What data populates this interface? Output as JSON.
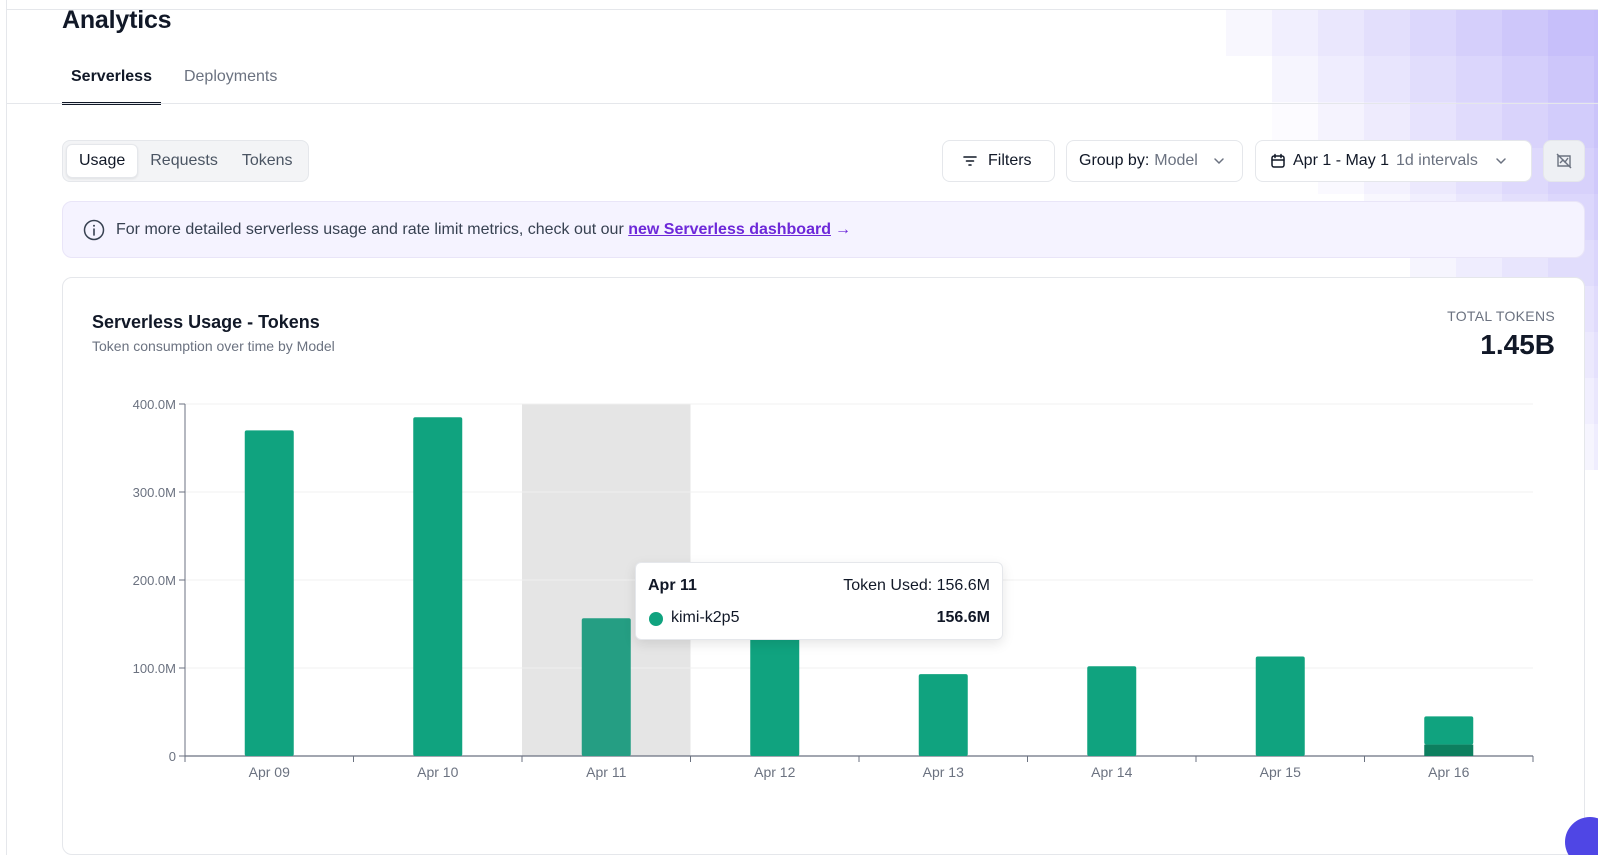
{
  "page": {
    "title": "Analytics"
  },
  "tabs": [
    {
      "label": "Serverless",
      "active": true
    },
    {
      "label": "Deployments",
      "active": false
    }
  ],
  "segmented": [
    {
      "label": "Usage",
      "active": true
    },
    {
      "label": "Requests",
      "active": false
    },
    {
      "label": "Tokens",
      "active": false
    }
  ],
  "toolbar": {
    "filters_label": "Filters",
    "group_by_prefix": "Group by:",
    "group_by_value": "Model",
    "date_range": "Apr 1 - May 1",
    "interval": "1d intervals"
  },
  "banner": {
    "text": "For more detailed serverless usage and rate limit metrics, check out our",
    "link_text": "new Serverless dashboard",
    "arrow": "→"
  },
  "card": {
    "title": "Serverless Usage - Tokens",
    "subtitle": "Token consumption over time by Model",
    "total_label": "TOTAL TOKENS",
    "total_value": "1.45B"
  },
  "tooltip": {
    "date": "Apr 11",
    "total": "Token Used: 156.6M",
    "model": "kimi-k2p5",
    "value": "156.6M"
  },
  "colors": {
    "primary_series": "#10a37f",
    "secondary_series": "#0d7f5f",
    "hover_band": "#e5e5e5",
    "accent_link": "#6d28d9"
  },
  "chart_data": {
    "type": "bar",
    "stacked": true,
    "categories": [
      "Apr 09",
      "Apr 10",
      "Apr 11",
      "Apr 12",
      "Apr 13",
      "Apr 14",
      "Apr 15",
      "Apr 16"
    ],
    "series": [
      {
        "name": "kimi-k2p5",
        "values": [
          370,
          385,
          156.6,
          135,
          93,
          102,
          113,
          32
        ]
      },
      {
        "values": [
          0,
          0,
          0,
          0,
          0,
          0,
          0,
          13
        ]
      }
    ],
    "ylim": [
      0,
      400
    ],
    "yticks": [
      0,
      100,
      200,
      300,
      400
    ],
    "ytick_labels": [
      "0",
      "100.0M",
      "200.0M",
      "300.0M",
      "400.0M"
    ],
    "unit": "M tokens",
    "highlighted_category": "Apr 11",
    "grid": true
  }
}
